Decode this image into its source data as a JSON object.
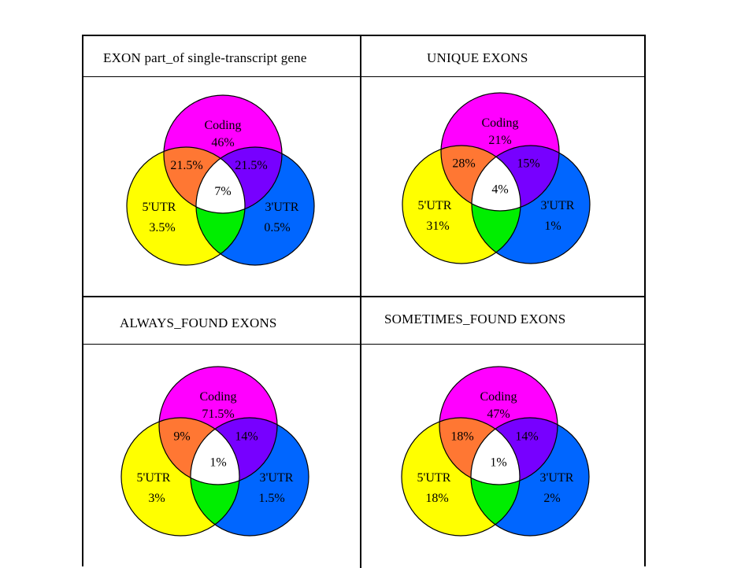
{
  "panels": [
    {
      "title": "EXON part_of single-transcript gene",
      "coding": {
        "name": "Coding",
        "pct": "46%"
      },
      "utr5": {
        "name": "5'UTR",
        "pct": "3.5%"
      },
      "utr3": {
        "name": "3'UTR",
        "pct": "0.5%"
      },
      "coding_utr5": "21.5%",
      "coding_utr3": "21.5%",
      "center": "7%"
    },
    {
      "title": "UNIQUE EXONS",
      "coding": {
        "name": "Coding",
        "pct": "21%"
      },
      "utr5": {
        "name": "5'UTR",
        "pct": "31%"
      },
      "utr3": {
        "name": "3'UTR",
        "pct": "1%"
      },
      "coding_utr5": "28%",
      "coding_utr3": "15%",
      "center": "4%"
    },
    {
      "title": "ALWAYS_FOUND EXONS",
      "coding": {
        "name": "Coding",
        "pct": "71.5%"
      },
      "utr5": {
        "name": "5'UTR",
        "pct": "3%"
      },
      "utr3": {
        "name": "3'UTR",
        "pct": "1.5%"
      },
      "coding_utr5": "9%",
      "coding_utr3": "14%",
      "center": "1%"
    },
    {
      "title": "SOMETIMES_FOUND EXONS",
      "coding": {
        "name": "Coding",
        "pct": "47%"
      },
      "utr5": {
        "name": "5'UTR",
        "pct": "18%"
      },
      "utr3": {
        "name": "3'UTR",
        "pct": "2%"
      },
      "coding_utr5": "18%",
      "coding_utr3": "14%",
      "center": "1%"
    }
  ],
  "colors": {
    "coding": "#ff00ff",
    "utr5": "#ffff00",
    "utr3": "#0066ff",
    "coding_utr5": "#ff7733",
    "coding_utr3": "#7700ff",
    "utr5_utr3": "#00ee00",
    "center": "#ffffff"
  }
}
